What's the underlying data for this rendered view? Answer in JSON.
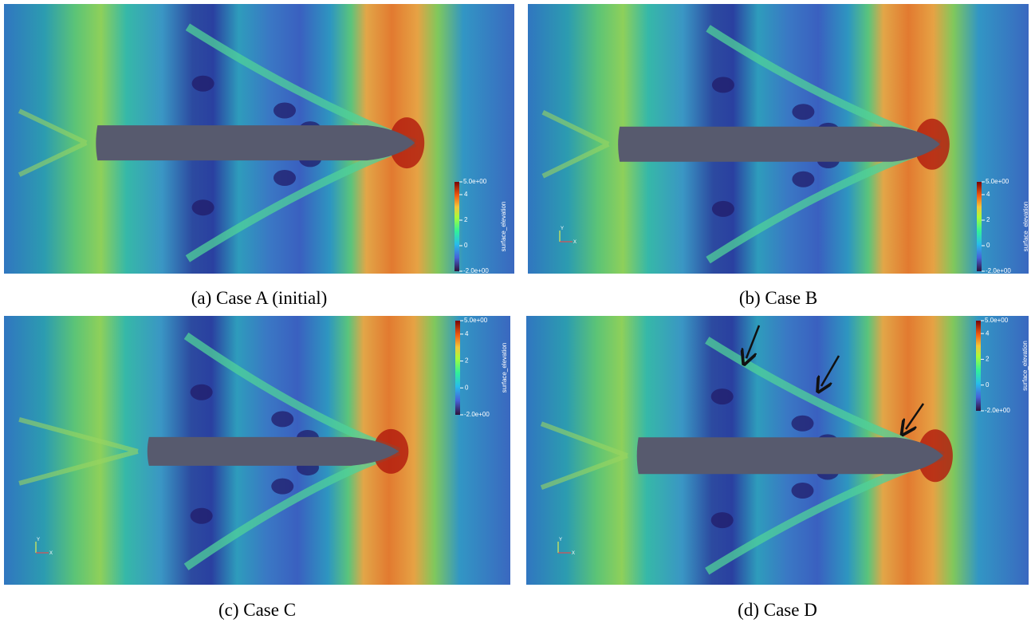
{
  "panels": [
    {
      "caption": "(a) Case A (initial)",
      "colorbar": {
        "title": "surface_elevation",
        "range": [
          {
            "value": -2,
            "label": "-2.0e+00"
          },
          {
            "value": 5,
            "label": "5.0e+00"
          }
        ],
        "ticks": [
          0,
          2,
          4
        ]
      }
    },
    {
      "caption": "(b) Case B",
      "colorbar": {
        "title": "surface_elevation",
        "range": [
          {
            "value": -2,
            "label": "-2.0e+00"
          },
          {
            "value": 5,
            "label": "5.0e+00"
          }
        ],
        "ticks": [
          0,
          2,
          4
        ]
      },
      "axes": {
        "y": "Y",
        "x": "X"
      }
    },
    {
      "caption": "(c) Case C",
      "colorbar": {
        "title": "surface_elevation",
        "range": [
          {
            "value": -2,
            "label": "-2.0e+00"
          },
          {
            "value": 5,
            "label": "5.0e+00"
          }
        ],
        "ticks": [
          0,
          2,
          4
        ]
      },
      "axes": {
        "y": "Y",
        "x": "X"
      }
    },
    {
      "caption": "(d) Case D",
      "colorbar": {
        "title": "surface_elevation",
        "range": [
          {
            "value": -2,
            "label": "-2.0e+00"
          },
          {
            "value": 5,
            "label": "5.0e+00"
          }
        ],
        "ticks": [
          0,
          2,
          4
        ]
      },
      "axes": {
        "y": "Y",
        "x": "X"
      }
    }
  ]
}
